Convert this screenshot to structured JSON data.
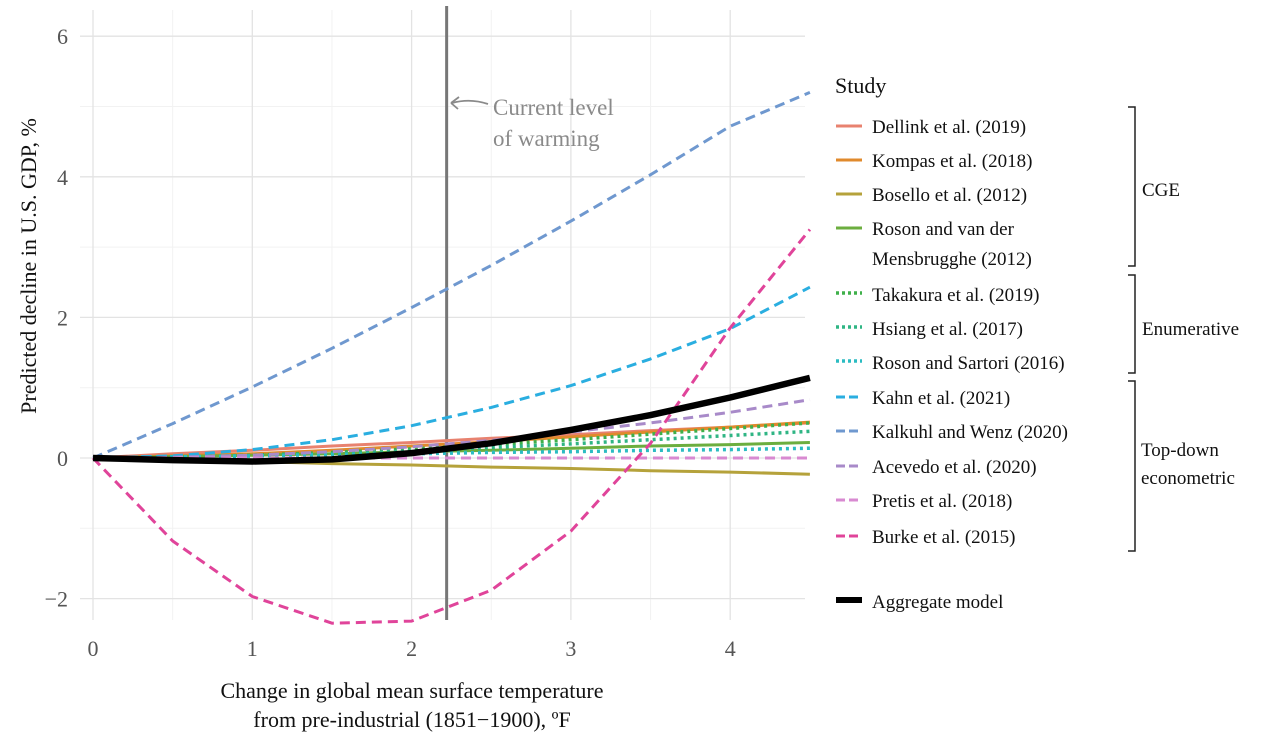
{
  "chart_data": {
    "type": "line",
    "xlabel": [
      "Change in global mean surface temperature",
      "from pre-industrial (1851−1900), ºF"
    ],
    "ylabel": "Predicted decline in U.S. GDP, %",
    "xlim": [
      -0.05,
      4.5
    ],
    "ylim": [
      -2.4,
      6.3
    ],
    "xticks": [
      0,
      1,
      2,
      3,
      4
    ],
    "yticks": [
      -2,
      0,
      2,
      4,
      6
    ],
    "ytick_labels": [
      "−2",
      "0",
      "2",
      "4",
      "6"
    ],
    "grid": true,
    "vline": {
      "x": 2.22,
      "label": [
        "Current level",
        "of warming"
      ],
      "color": "#777777"
    },
    "legend_title": "Study",
    "legend_position": "right",
    "groups": [
      {
        "label": [
          "CGE"
        ]
      },
      {
        "label": [
          "Enumerative"
        ]
      },
      {
        "label": [
          "Top-down",
          "econometric"
        ]
      }
    ],
    "x": [
      0,
      0.5,
      1,
      1.5,
      2,
      2.5,
      3,
      3.5,
      4,
      4.5
    ],
    "series": [
      {
        "name": [
          "Dellink et al. (2019)"
        ],
        "color": "#e8826f",
        "style": "solid",
        "values": [
          0,
          0.06,
          0.11,
          0.17,
          0.22,
          0.28,
          0.33,
          0.39,
          0.44,
          0.5
        ]
      },
      {
        "name": [
          "Kompas et al. (2018)"
        ],
        "color": "#e08a2c",
        "style": "solid",
        "values": [
          0,
          0.03,
          0.06,
          0.11,
          0.17,
          0.23,
          0.3,
          0.37,
          0.44,
          0.51
        ]
      },
      {
        "name": [
          "Bosello et al. (2012)"
        ],
        "color": "#b5a23b",
        "style": "solid",
        "values": [
          0,
          -0.03,
          -0.05,
          -0.08,
          -0.1,
          -0.13,
          -0.15,
          -0.18,
          -0.2,
          -0.23
        ]
      },
      {
        "name": [
          "Roson and van der",
          "Mensbrugghe (2012)"
        ],
        "color": "#6cae3f",
        "style": "solid",
        "values": [
          0,
          0.02,
          0.04,
          0.06,
          0.09,
          0.11,
          0.14,
          0.17,
          0.19,
          0.22
        ]
      },
      {
        "name": [
          "Takakura et al. (2019)"
        ],
        "color": "#3fb04a",
        "style": "dotted",
        "values": [
          0,
          0.01,
          0.04,
          0.08,
          0.13,
          0.19,
          0.26,
          0.34,
          0.42,
          0.5
        ]
      },
      {
        "name": [
          "Hsiang et al. (2017)"
        ],
        "color": "#2fb584",
        "style": "dotted",
        "values": [
          0,
          0.01,
          0.03,
          0.06,
          0.1,
          0.15,
          0.2,
          0.26,
          0.32,
          0.38
        ]
      },
      {
        "name": [
          "Roson and Sartori (2016)"
        ],
        "color": "#2bbcc2",
        "style": "dotted",
        "values": [
          0,
          0.02,
          0.03,
          0.05,
          0.06,
          0.08,
          0.09,
          0.11,
          0.12,
          0.14
        ]
      },
      {
        "name": [
          "Kahn et al. (2021)"
        ],
        "color": "#2aaee0",
        "style": "dashed",
        "values": [
          0,
          0.03,
          0.12,
          0.26,
          0.46,
          0.72,
          1.03,
          1.41,
          1.84,
          2.43
        ]
      },
      {
        "name": [
          "Kalkuhl and Wenz (2020)"
        ],
        "color": "#6f98cf",
        "style": "dashed",
        "values": [
          0,
          0.49,
          1.01,
          1.56,
          2.14,
          2.74,
          3.37,
          4.03,
          4.72,
          5.2
        ]
      },
      {
        "name": [
          "Acevedo et al. (2020)"
        ],
        "color": "#a88ac9",
        "style": "dashed",
        "values": [
          0,
          0.01,
          0.04,
          0.09,
          0.16,
          0.25,
          0.37,
          0.5,
          0.65,
          0.83
        ]
      },
      {
        "name": [
          "Pretis et al. (2018)"
        ],
        "color": "#d88ad1",
        "style": "dashed",
        "values": [
          0,
          0,
          0,
          0,
          0,
          0,
          0,
          0,
          0,
          0
        ]
      },
      {
        "name": [
          "Burke et al. (2015)"
        ],
        "color": "#e0449a",
        "style": "dashed",
        "values": [
          0,
          -1.18,
          -1.97,
          -2.35,
          -2.32,
          -1.88,
          -1.04,
          0.21,
          1.85,
          3.25
        ]
      },
      {
        "name": [
          "Aggregate model"
        ],
        "color": "#000000",
        "style": "thick",
        "values": [
          0,
          -0.03,
          -0.05,
          -0.02,
          0.07,
          0.21,
          0.4,
          0.61,
          0.86,
          1.14
        ]
      }
    ]
  }
}
